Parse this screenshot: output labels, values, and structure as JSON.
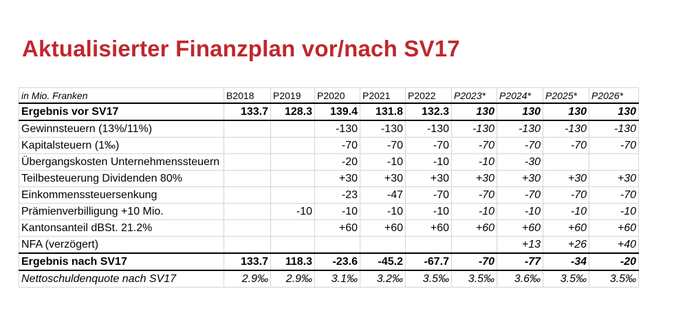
{
  "title": "Aktualisierter Finanzplan vor/nach SV17",
  "table": {
    "unit_label": "in Mio. Franken",
    "columns": [
      "B2018",
      "P2019",
      "P2020",
      "P2021",
      "P2022",
      "P2023*",
      "P2024*",
      "P2025*",
      "P2026*"
    ],
    "rows": [
      {
        "label": "Ergebnis vor SV17",
        "values": [
          "133.7",
          "128.3",
          "139.4",
          "131.8",
          "132.3",
          "130",
          "130",
          "130",
          "130"
        ]
      },
      {
        "label": "Gewinnsteuern (13%/11%)",
        "values": [
          "",
          "",
          "-130",
          "-130",
          "-130",
          "-130",
          "-130",
          "-130",
          "-130"
        ]
      },
      {
        "label": "Kapitalsteuern (1‰)",
        "values": [
          "",
          "",
          "-70",
          "-70",
          "-70",
          "-70",
          "-70",
          "-70",
          "-70"
        ]
      },
      {
        "label": "Übergangskosten Unternehmenssteuern",
        "values": [
          "",
          "",
          "-20",
          "-10",
          "-10",
          "-10",
          "-30",
          "",
          ""
        ]
      },
      {
        "label": "Teilbesteuerung Dividenden 80%",
        "values": [
          "",
          "",
          "+30",
          "+30",
          "+30",
          "+30",
          "+30",
          "+30",
          "+30"
        ]
      },
      {
        "label": "Einkommenssteuersenkung",
        "values": [
          "",
          "",
          "-23",
          "-47",
          "-70",
          "-70",
          "-70",
          "-70",
          "-70"
        ]
      },
      {
        "label": "Prämienverbilligung +10 Mio.",
        "values": [
          "",
          "-10",
          "-10",
          "-10",
          "-10",
          "-10",
          "-10",
          "-10",
          "-10"
        ]
      },
      {
        "label": "Kantonsanteil dBSt. 21.2%",
        "values": [
          "",
          "",
          "+60",
          "+60",
          "+60",
          "+60",
          "+60",
          "+60",
          "+60"
        ]
      },
      {
        "label": "NFA (verzögert)",
        "values": [
          "",
          "",
          "",
          "",
          "",
          "",
          "+13",
          "+26",
          "+40"
        ]
      },
      {
        "label": "Ergebnis nach SV17",
        "values": [
          "133.7",
          "118.3",
          "-23.6",
          "-45.2",
          "-67.7",
          "-70",
          "-77",
          "-34",
          "-20"
        ]
      },
      {
        "label": "Nettoschuldenquote nach SV17",
        "values": [
          "2.9‰",
          "2.9‰",
          "3.1‰",
          "3.2‰",
          "3.5‰",
          "3.5‰",
          "3.6‰",
          "3.5‰",
          "3.5‰"
        ]
      }
    ]
  },
  "colors": {
    "title": "#c0272d",
    "grid": "#d4d4d4",
    "rule": "#000000"
  }
}
